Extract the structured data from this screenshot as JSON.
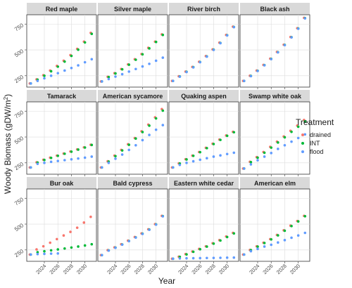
{
  "chart_data": {
    "type": "scatter",
    "ylabel_main": "Woody Biomass (gDW/",
    "ylabel_unit": "m",
    "ylabel_exp": "2",
    "ylabel_close": ")",
    "xlabel": "Year",
    "x": [
      2022,
      2023,
      2024,
      2025,
      2026,
      2027,
      2028,
      2029,
      2030,
      2031
    ],
    "xticks": [
      2024,
      2026,
      2028,
      2030
    ],
    "yticks": [
      250,
      500,
      750
    ],
    "ylim": [
      140,
      840
    ],
    "xlim": [
      2021.4,
      2031.7
    ],
    "grid": true,
    "legend": {
      "title": "Treatment",
      "placement": "right",
      "entries": [
        {
          "name": "drained",
          "color": "#F8766D"
        },
        {
          "name": "INT",
          "color": "#00BA38"
        },
        {
          "name": "flood",
          "color": "#619CFF"
        }
      ]
    },
    "panels": [
      {
        "title": "Red maple",
        "series": {
          "drained": [
            175,
            215,
            255,
            300,
            345,
            395,
            450,
            510,
            580,
            665
          ],
          "INT": [
            175,
            212,
            250,
            293,
            338,
            387,
            442,
            502,
            572,
            655
          ],
          "flood": [
            175,
            200,
            225,
            250,
            275,
            300,
            325,
            350,
            380,
            410
          ]
        }
      },
      {
        "title": "Silver maple",
        "series": {
          "drained": [
            195,
            240,
            275,
            315,
            360,
            410,
            460,
            520,
            580,
            650
          ],
          "INT": [
            195,
            237,
            272,
            312,
            357,
            405,
            457,
            515,
            577,
            645
          ],
          "flood": [
            195,
            218,
            242,
            265,
            290,
            315,
            340,
            365,
            395,
            425
          ]
        }
      },
      {
        "title": "River birch",
        "series": {
          "drained": [
            200,
            245,
            290,
            335,
            385,
            440,
            505,
            570,
            645,
            725
          ],
          "INT": [
            200,
            243,
            288,
            333,
            383,
            437,
            502,
            567,
            642,
            722
          ],
          "flood": [
            200,
            241,
            286,
            331,
            381,
            435,
            500,
            565,
            640,
            720
          ]
        }
      },
      {
        "title": "Black ash",
        "series": {
          "drained": [
            200,
            250,
            300,
            355,
            415,
            480,
            550,
            625,
            710,
            810
          ],
          "INT": [
            200,
            248,
            298,
            353,
            413,
            478,
            548,
            623,
            707,
            807
          ],
          "flood": [
            200,
            246,
            296,
            351,
            411,
            476,
            546,
            621,
            705,
            805
          ]
        }
      },
      {
        "title": "Tamarack",
        "series": {
          "drained": [
            205,
            255,
            280,
            300,
            320,
            340,
            360,
            380,
            400,
            425
          ],
          "INT": [
            205,
            253,
            278,
            298,
            318,
            338,
            358,
            378,
            398,
            423
          ],
          "flood": [
            205,
            240,
            250,
            260,
            268,
            276,
            284,
            292,
            300,
            310
          ]
        }
      },
      {
        "title": "American sycamore",
        "series": {
          "drained": [
            205,
            265,
            320,
            375,
            430,
            490,
            555,
            620,
            690,
            770
          ],
          "INT": [
            205,
            262,
            315,
            370,
            425,
            485,
            548,
            610,
            680,
            755
          ],
          "flood": [
            205,
            250,
            290,
            330,
            375,
            420,
            470,
            520,
            570,
            615
          ]
        }
      },
      {
        "title": "Quaking aspen",
        "series": {
          "drained": [
            205,
            245,
            285,
            320,
            355,
            395,
            435,
            475,
            515,
            550
          ],
          "INT": [
            205,
            243,
            283,
            318,
            353,
            392,
            432,
            472,
            512,
            546
          ],
          "flood": [
            205,
            230,
            250,
            265,
            280,
            295,
            310,
            322,
            335,
            348
          ]
        }
      },
      {
        "title": "Swamp white oak",
        "series": {
          "drained": [
            195,
            260,
            305,
            355,
            405,
            455,
            505,
            560,
            610,
            665
          ],
          "INT": [
            195,
            257,
            300,
            348,
            397,
            447,
            497,
            550,
            600,
            652
          ],
          "flood": [
            195,
            235,
            275,
            310,
            345,
            385,
            420,
            455,
            490,
            525
          ]
        }
      },
      {
        "title": "Bur oak",
        "series": {
          "drained": [
            205,
            255,
            285,
            320,
            355,
            390,
            425,
            465,
            515,
            570
          ],
          "INT": [
            205,
            228,
            237,
            246,
            255,
            264,
            273,
            283,
            293,
            305
          ],
          "flood": [
            205,
            210,
            212,
            214,
            216,
            null,
            null,
            null,
            null,
            null
          ]
        }
      },
      {
        "title": "Bald cypress",
        "series": {
          "drained": [
            200,
            248,
            275,
            305,
            340,
            375,
            410,
            450,
            500,
            580
          ],
          "INT": [
            200,
            246,
            273,
            303,
            337,
            372,
            407,
            447,
            497,
            577
          ],
          "flood": [
            200,
            244,
            271,
            301,
            335,
            370,
            405,
            445,
            495,
            575
          ]
        }
      },
      {
        "title": "Eastern white cedar",
        "series": {
          "drained": [
            165,
            185,
            210,
            235,
            260,
            285,
            315,
            345,
            380,
            415
          ],
          "INT": [
            165,
            183,
            207,
            232,
            257,
            282,
            311,
            341,
            375,
            410
          ],
          "flood": [
            165,
            168,
            169,
            170,
            171,
            172,
            173,
            174,
            175,
            176
          ]
        }
      },
      {
        "title": "American elm",
        "series": {
          "drained": [
            205,
            250,
            285,
            320,
            355,
            395,
            440,
            485,
            530,
            580
          ],
          "INT": [
            205,
            248,
            282,
            317,
            352,
            391,
            436,
            481,
            526,
            576
          ],
          "flood": [
            205,
            238,
            260,
            283,
            300,
            322,
            345,
            368,
            390,
            415
          ]
        }
      }
    ]
  }
}
